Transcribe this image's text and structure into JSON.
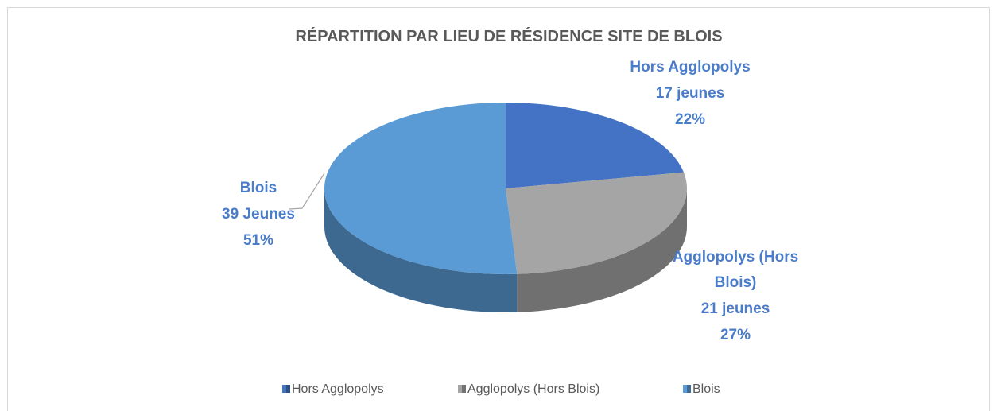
{
  "chart_data": {
    "type": "pie3d",
    "title": "RÉPARTITION PAR LIEU DE RÉSIDENCE SITE DE BLOIS",
    "categories": [
      "Hors Agglopolys",
      "Agglopolys (Hors Blois)",
      "Blois"
    ],
    "values": [
      22,
      27,
      51
    ],
    "value_labels": [
      "22%",
      "27%",
      "51%"
    ],
    "count_labels": [
      "17 jeunes",
      "21 jeunes",
      "39 Jeunes"
    ],
    "colors": [
      "#4472c4",
      "#a5a5a5",
      "#5b9bd5"
    ],
    "legend": "bottom"
  }
}
